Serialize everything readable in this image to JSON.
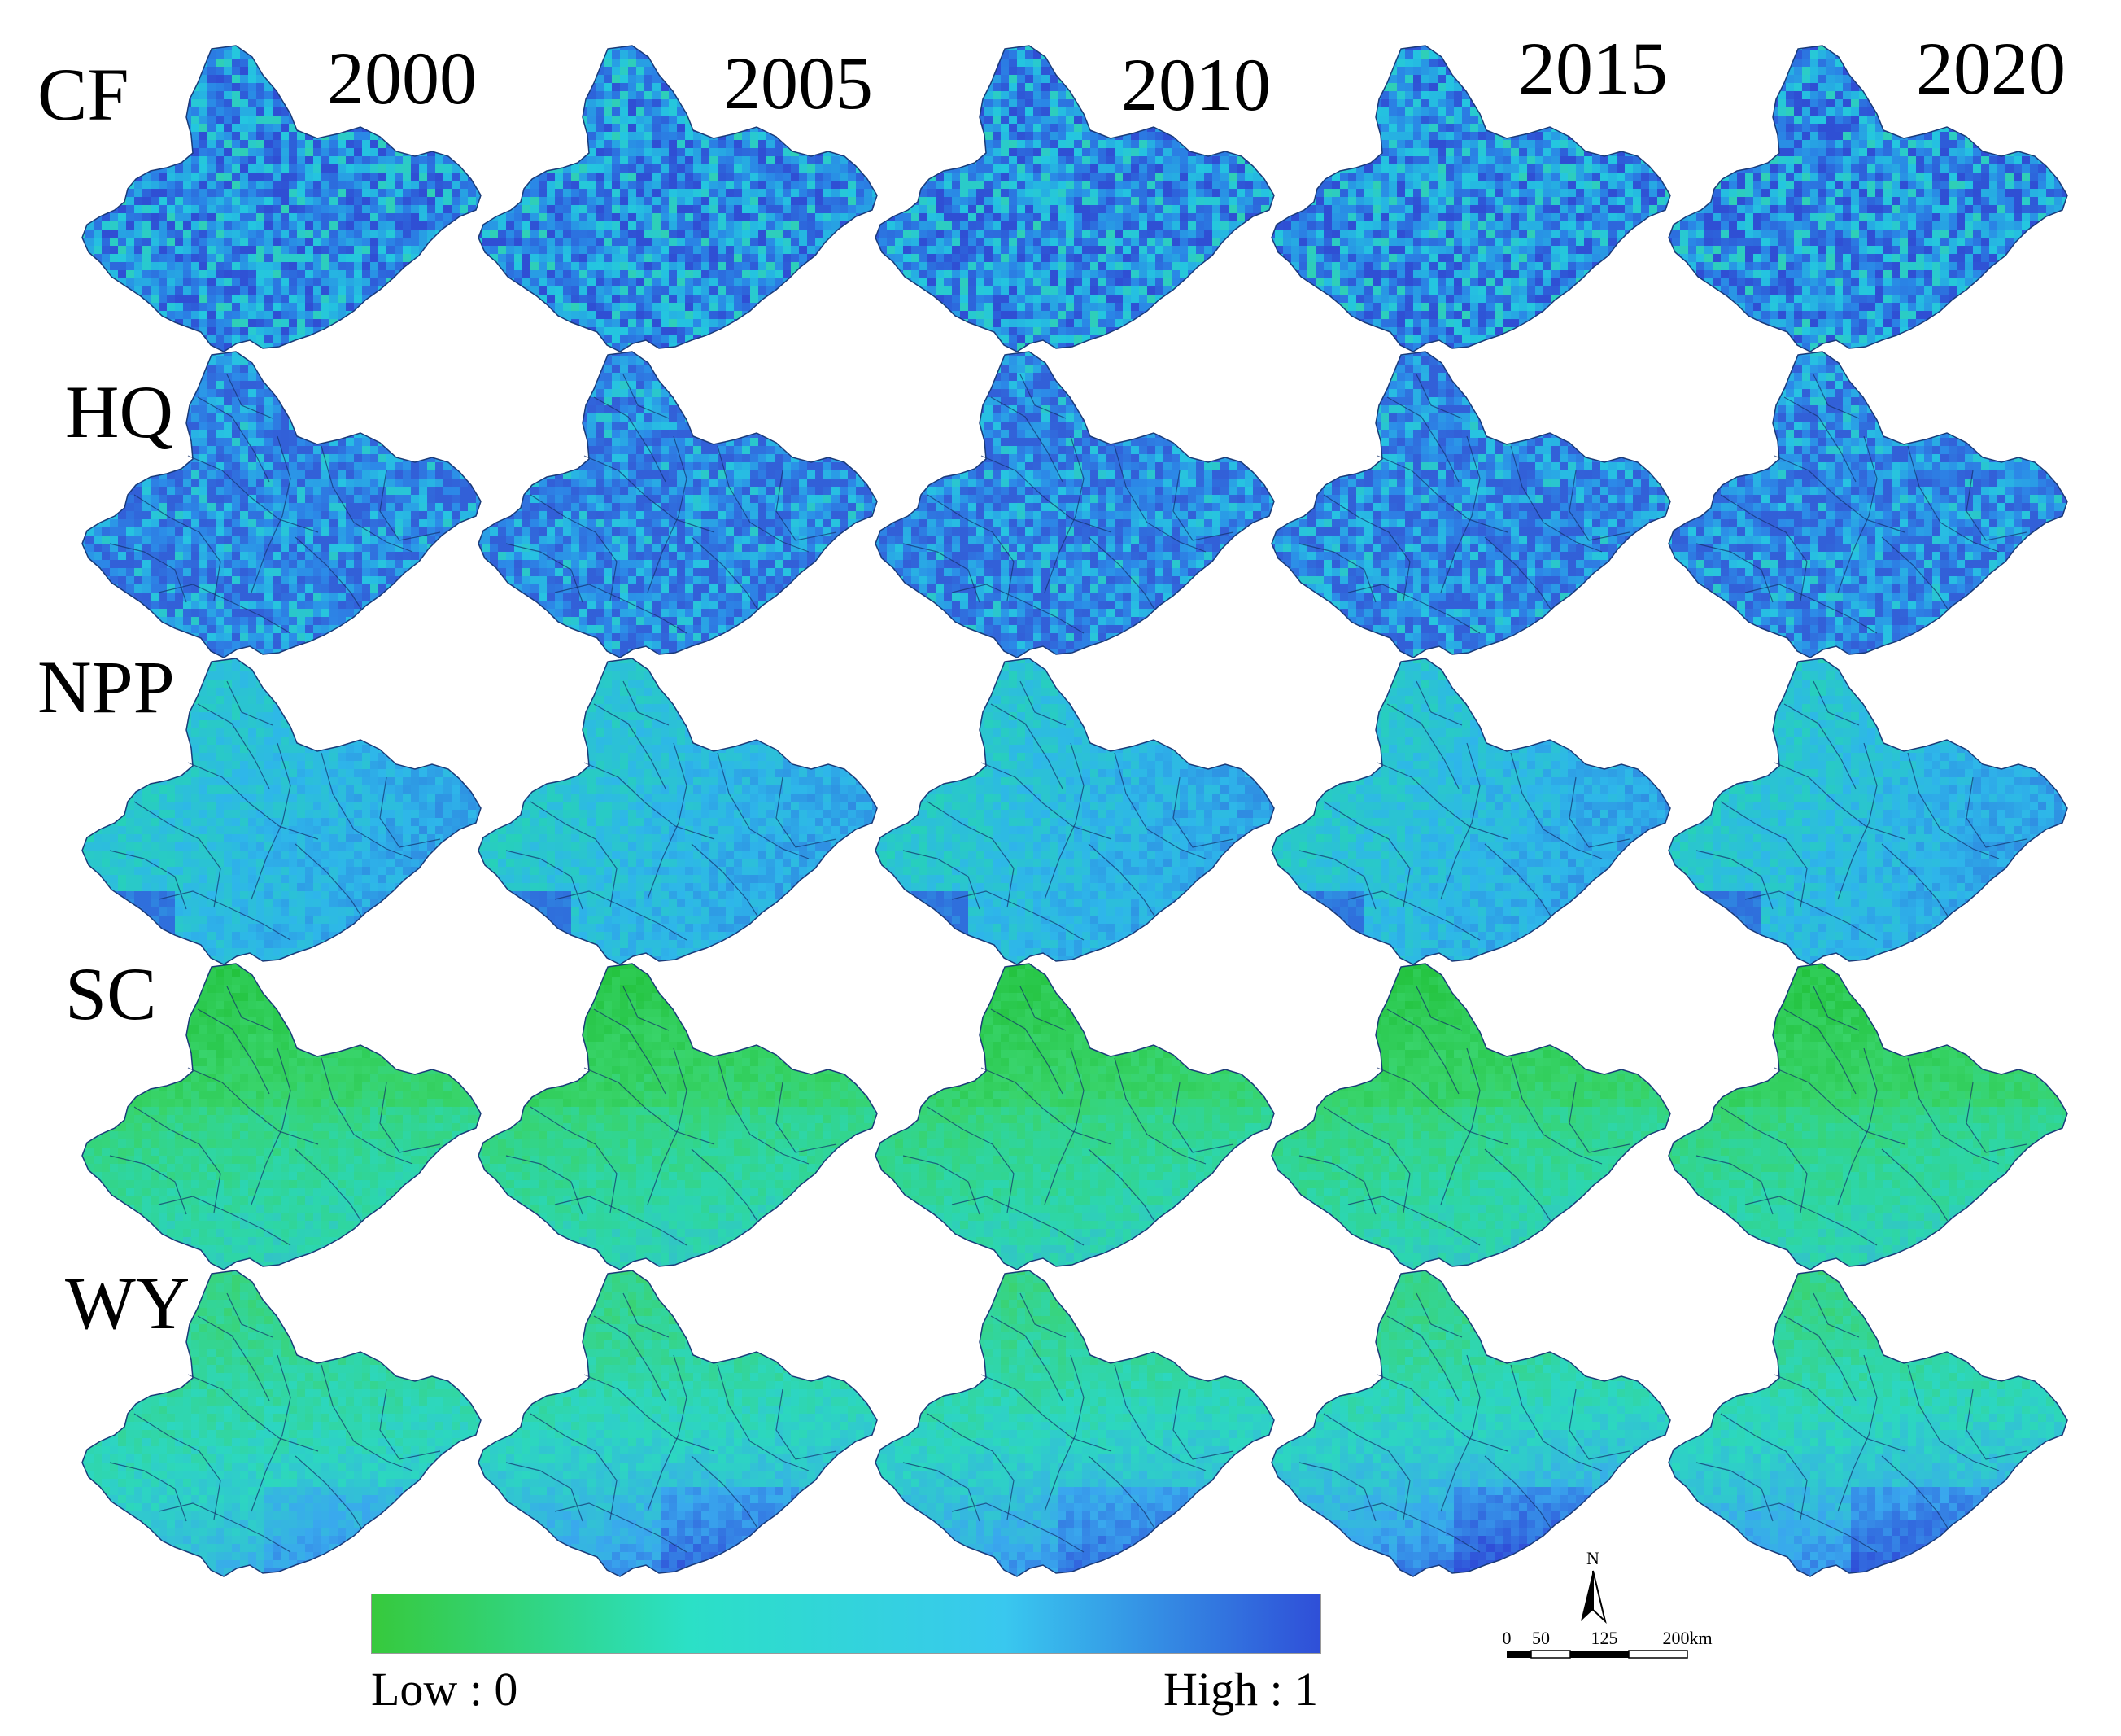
{
  "years": [
    "2000",
    "2005",
    "2010",
    "2015",
    "2020"
  ],
  "rows": [
    {
      "label": "CF",
      "pattern": "cf",
      "fills": [
        "#2f4fd4",
        "#2a86e6",
        "#24c6e0",
        "#3bd98a"
      ]
    },
    {
      "label": "HQ",
      "pattern": "hq",
      "fills": [
        "#3260d8",
        "#2c8ae8",
        "#27c3e2",
        "#36d676"
      ]
    },
    {
      "label": "NPP",
      "pattern": "npp",
      "fills": [
        "#30d56a",
        "#26d3b6",
        "#2eb6ea",
        "#2f6fdc"
      ]
    },
    {
      "label": "SC",
      "pattern": "sc",
      "fills": [
        "#22c23c",
        "#38d46a",
        "#2cd6b0",
        "#3aa7ea"
      ]
    },
    {
      "label": "WY",
      "pattern": "wy",
      "fills": [
        "#3bd36c",
        "#2cd7c0",
        "#39a8ee",
        "#2f4fd8"
      ]
    }
  ],
  "legend": {
    "low": "Low : 0",
    "high": "High : 1",
    "colors": [
      "#37c93c",
      "#2be0c6",
      "#39c8ef",
      "#2f4fd8"
    ]
  },
  "scale_bar": {
    "north": "N",
    "labels": [
      "0",
      "50",
      "125",
      "200km"
    ]
  }
}
